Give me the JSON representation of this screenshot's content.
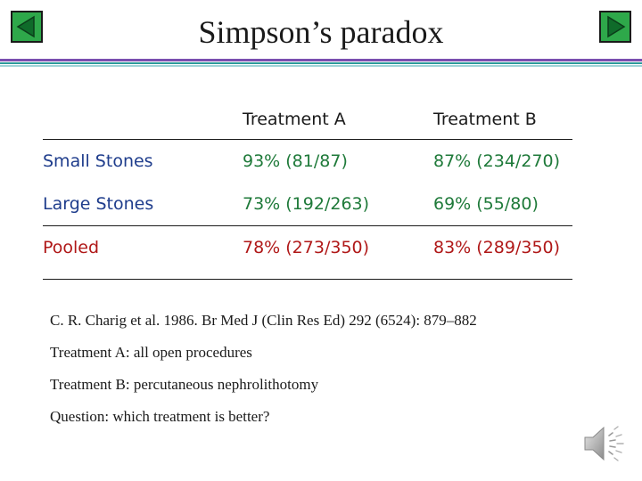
{
  "slide": {
    "title": "Simpson’s paradox",
    "colors": {
      "row_label": "#1f3d8c",
      "treatment_a": "#1f7a3a",
      "treatment_b": "#1f7a3a",
      "pooled": "#b01818",
      "nav_button": "#2ea84a"
    }
  },
  "nav": {
    "prev_icon": "triangle-left-icon",
    "next_icon": "triangle-right-icon"
  },
  "table": {
    "headers": [
      "",
      "Treatment A",
      "Treatment B"
    ],
    "rows": [
      {
        "label": "Small Stones",
        "a": "93% (81/87)",
        "b": "87% (234/270)"
      },
      {
        "label": "Large Stones",
        "a": "73% (192/263)",
        "b": "69% (55/80)"
      },
      {
        "label": "Pooled",
        "a": "78% (273/350)",
        "b": "83% (289/350)"
      }
    ]
  },
  "notes": [
    "C. R. Charig et al. 1986. Br Med J (Clin Res Ed) 292 (6524): 879–882",
    "Treatment A: all open procedures",
    "Treatment B: percutaneous nephrolithotomy",
    "Question: which treatment is better?"
  ],
  "audio": {
    "icon": "speaker-icon"
  }
}
